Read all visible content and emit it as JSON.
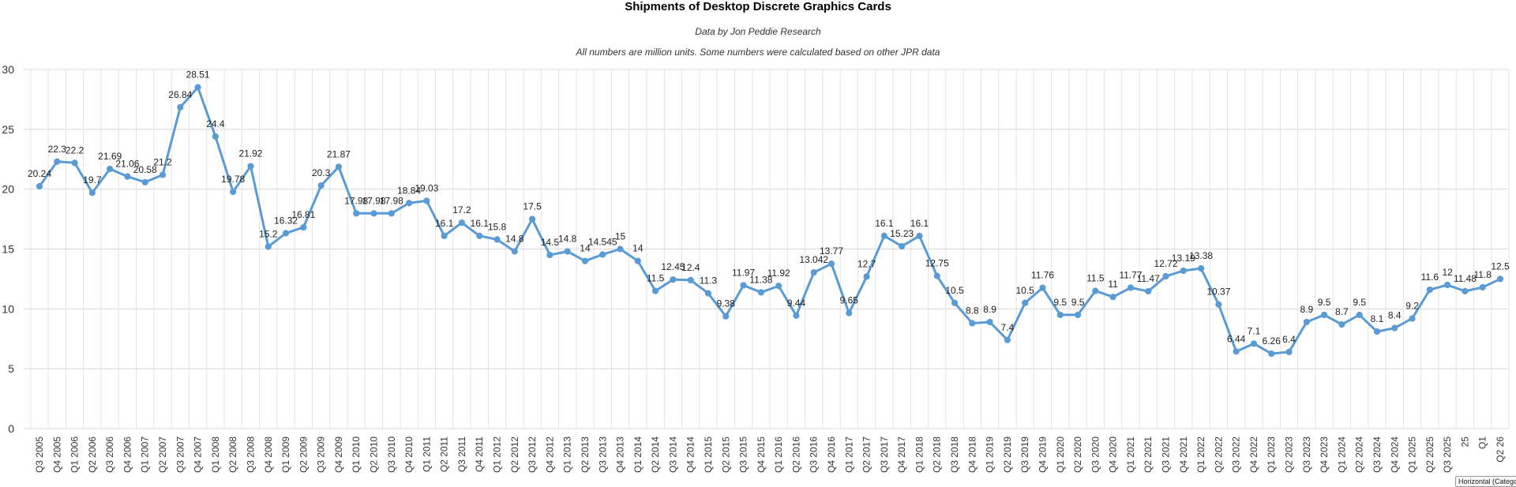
{
  "chart_data": {
    "type": "line",
    "title": "Shipments of Desktop Discrete Graphics Cards",
    "subtitle": "Data by Jon Peddie Research",
    "note": "All numbers are million units. Some numbers were calculated based on other JPR data",
    "ylim": [
      0,
      30
    ],
    "yticks": [
      0,
      5,
      10,
      15,
      20,
      25,
      30
    ],
    "grid": true,
    "legend": "none",
    "color": "#5b9bd5",
    "categories": [
      "Q3 2005",
      "Q4 2005",
      "Q1 2006",
      "Q2 2006",
      "Q3 2006",
      "Q4 2006",
      "Q1 2007",
      "Q2 2007",
      "Q3 2007",
      "Q4 2007",
      "Q1 2008",
      "Q2 2008",
      "Q3 2008",
      "Q4 2008",
      "Q1 2009",
      "Q2 2009",
      "Q3 2009",
      "Q4 2009",
      "Q1 2010",
      "Q2 2010",
      "Q3 2010",
      "Q4 2010",
      "Q1 2011",
      "Q2 2011",
      "Q3 2011",
      "Q4 2011",
      "Q1 2012",
      "Q2 2012",
      "Q3 2012",
      "Q4 2012",
      "Q1 2013",
      "Q2 2013",
      "Q3 2013",
      "Q4 2013",
      "Q1 2014",
      "Q2 2014",
      "Q3 2014",
      "Q4 2014",
      "Q1 2015",
      "Q2 2015",
      "Q3 2015",
      "Q4 2015",
      "Q1 2016",
      "Q2 2016",
      "Q3 2016",
      "Q4 2016",
      "Q1 2017",
      "Q2 2017",
      "Q3 2017",
      "Q4 2017",
      "Q1 2018",
      "Q2 2018",
      "Q3 2018",
      "Q4 2018",
      "Q1 2019",
      "Q2 2019",
      "Q3 2019",
      "Q4 2019",
      "Q1 2020",
      "Q2 2020",
      "Q3 2020",
      "Q4 2020",
      "Q1 2021",
      "Q2 2021",
      "Q3 2021",
      "Q4 2021",
      "Q1 2022",
      "Q2 2022",
      "Q3 2022",
      "Q4 2022",
      "Q1 2023",
      "Q2 2023",
      "Q3 2023",
      "Q4 2023",
      "Q1 2024",
      "Q2 2024",
      "Q3 2024",
      "Q4 2024",
      "Q1 2025",
      "Q2 2025",
      "Q3 2025",
      "Q4 2025",
      "Q1 2026",
      "Q2 2026"
    ],
    "x_tick_labels": [
      "Q3 2005",
      "Q4 2005",
      "Q1 2006",
      "Q2 2006",
      "Q3 2006",
      "Q4 2006",
      "Q1 2007",
      "Q2 2007",
      "Q3 2007",
      "Q4 2007",
      "Q1 2008",
      "Q2 2008",
      "Q3 2008",
      "Q4 2008",
      "Q1 2009",
      "Q2 2009",
      "Q3 2009",
      "Q4 2009",
      "Q1 2010",
      "Q2 2010",
      "Q3 2010",
      "Q4 2010",
      "Q1 2011",
      "Q2 2011",
      "Q3 2011",
      "Q4 2011",
      "Q1 2012",
      "Q2 2012",
      "Q3 2012",
      "Q4 2012",
      "Q1 2013",
      "Q2 2013",
      "Q3 2013",
      "Q4 2013",
      "Q1 2014",
      "Q2 2014",
      "Q3 2014",
      "Q4 2014",
      "Q1 2015",
      "Q2 2015",
      "Q3 2015",
      "Q4 2015",
      "Q1 2016",
      "Q2 2016",
      "Q3 2016",
      "Q4 2016",
      "Q1 2017",
      "Q2 2017",
      "Q3 2017",
      "Q4 2017",
      "Q1 2018",
      "Q2 2018",
      "Q3 2018",
      "Q4 2018",
      "Q1 2019",
      "Q2 2019",
      "Q3 2019",
      "Q4 2019",
      "Q1 2020",
      "Q2 2020",
      "Q3 2020",
      "Q4 2020",
      "Q1 2021",
      "Q2 2021",
      "Q3 2021",
      "Q4 2021",
      "Q1 2022",
      "Q2 2022",
      "Q3 2022",
      "Q4 2022",
      "Q1 2023",
      "Q2 2023",
      "Q3 2023",
      "Q4 2023",
      "Q1 2024",
      "Q2 2024",
      "Q3 2024",
      "Q4 2024",
      "Q1 2025",
      "Q2 2025",
      "Q3 2025",
      "25",
      "Q1",
      "Q2 26"
    ],
    "values": [
      20.24,
      22.3,
      22.2,
      19.7,
      21.69,
      21.06,
      20.58,
      21.2,
      26.84,
      28.51,
      24.4,
      19.78,
      21.92,
      15.2,
      16.32,
      16.81,
      20.3,
      21.87,
      17.98,
      17.98,
      17.98,
      18.84,
      19.03,
      16.1,
      17.2,
      16.1,
      15.8,
      14.8,
      17.5,
      14.5,
      14.8,
      14,
      14.545,
      15,
      14,
      11.5,
      12.45,
      12.4,
      11.3,
      9.38,
      11.97,
      11.38,
      11.92,
      9.44,
      13.042,
      13.77,
      9.65,
      12.7,
      16.1,
      15.23,
      16.1,
      12.75,
      10.5,
      8.8,
      8.9,
      7.4,
      10.5,
      11.76,
      9.5,
      9.5,
      11.5,
      11,
      11.77,
      11.47,
      12.72,
      13.19,
      13.38,
      10.37,
      6.44,
      7.1,
      6.26,
      6.4,
      8.9,
      9.5,
      8.7,
      9.5,
      8.1,
      8.4,
      9.2,
      11.6,
      12,
      11.48,
      11.8,
      12.5
    ],
    "data_labels": [
      "20.24",
      "22.3",
      "22.2",
      "19.7",
      "21.69",
      "21.06",
      "20.58",
      "21.2",
      "26.84",
      "28.51",
      "24.4",
      "19.78",
      "21.92",
      "15.2",
      "16.32",
      "16.81",
      "20.3",
      "21.87",
      "17.98",
      "17.98",
      "17.98",
      "18.84",
      "19.03",
      "16.1",
      "17.2",
      "16.1",
      "15.8",
      "14.8",
      "17.5",
      "14.5",
      "14.8",
      "14",
      "14.545",
      "15",
      "14",
      "11.5",
      "12.45",
      "12.4",
      "11.3",
      "9.38",
      "11.97",
      "11.38",
      "11.92",
      "9.44",
      "13.042",
      "13.77",
      "9.65",
      "12.7",
      "16.1",
      "15.23",
      "16.1",
      "12.75",
      "10.5",
      "8.8",
      "8.9",
      "7.4",
      "10.5",
      "11.76",
      "9.5",
      "9.5",
      "11.5",
      "11",
      "11.77",
      "11.47",
      "12.72",
      "13.19",
      "13.38",
      "10.37",
      "6.44",
      "7.1",
      "6.26",
      "6.4",
      "8.9",
      "9.5",
      "8.7",
      "9.5",
      "8.1",
      "8.4",
      "9.2",
      "11.6",
      "12",
      "11.48",
      "11.8",
      "12.5"
    ]
  },
  "tooltip": {
    "text": "Horizontal (Catego"
  }
}
